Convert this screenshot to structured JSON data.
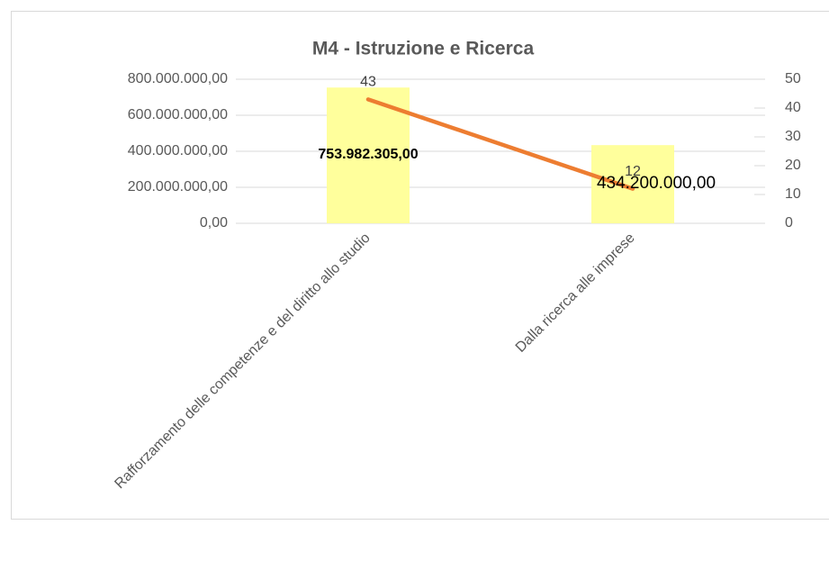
{
  "chart_data": {
    "type": "bar_line",
    "title": "M4 - Istruzione e Ricerca",
    "categories": [
      "Rafforzamento delle competenze e del diritto allo studio",
      "Dalla ricerca alle imprese"
    ],
    "series": [
      {
        "type": "bar",
        "color": "#FFFF9C",
        "values": [
          753982305,
          434200000
        ],
        "value_labels": [
          "753.982.305,00",
          "434.200.000,00"
        ]
      },
      {
        "type": "line",
        "color": "#ED7D31",
        "axis": "y2",
        "values": [
          43,
          12
        ]
      }
    ],
    "ylim": [
      0,
      800000000
    ],
    "yticks": [
      {
        "value": 0,
        "label": "0,00"
      },
      {
        "value": 200000000,
        "label": "200.000.000,00"
      },
      {
        "value": 400000000,
        "label": "400.000.000,00"
      },
      {
        "value": 600000000,
        "label": "600.000.000,00"
      },
      {
        "value": 800000000,
        "label": "800.000.000,00"
      }
    ],
    "y2lim": [
      0,
      50
    ],
    "y2ticks": [
      0,
      10,
      20,
      30,
      40,
      50
    ],
    "grid": true
  }
}
